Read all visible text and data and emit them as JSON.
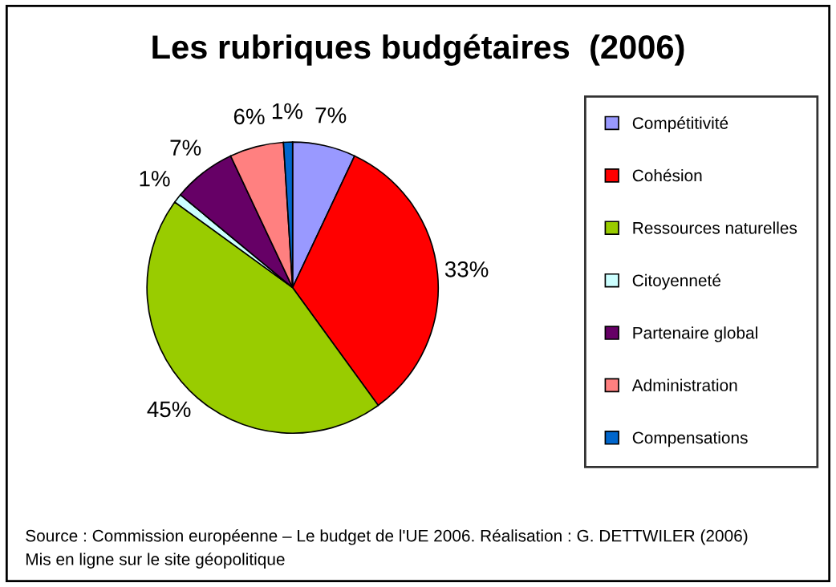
{
  "chart_data": {
    "type": "pie",
    "title": "Les rubriques budgétaires  (2006)",
    "categories": [
      "Compétitivité",
      "Cohésion",
      "Ressources naturelles",
      "Citoyenneté",
      "Partenaire global",
      "Administration",
      "Compensations"
    ],
    "values": [
      7,
      33,
      45,
      1,
      7,
      6,
      1
    ],
    "value_labels": [
      "7%",
      "33%",
      "45%",
      "1%",
      "7%",
      "6%",
      "1%"
    ],
    "colors": [
      "#9999ff",
      "#ff0000",
      "#99cc00",
      "#ccffff",
      "#660066",
      "#ff8080",
      "#0066cc"
    ],
    "legend": "right",
    "annotations": [
      "Source : Commission européenne – Le budget de l'UE 2006. Réalisation : G. DETTWILER (2006)",
      "Mis en ligne sur le site géopolitique"
    ]
  }
}
